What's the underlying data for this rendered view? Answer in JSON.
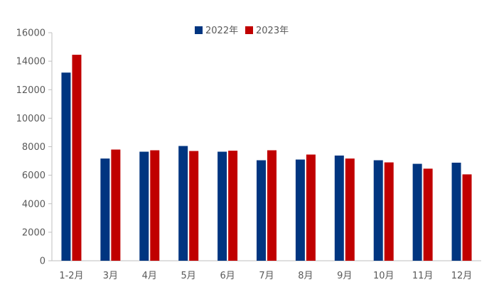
{
  "chart_data": {
    "type": "bar",
    "categories": [
      "1-2月",
      "3月",
      "4月",
      "5月",
      "6月",
      "7月",
      "8月",
      "9月",
      "10月",
      "11月",
      "12月"
    ],
    "series": [
      {
        "name": "2022年",
        "color": "#003580",
        "values": [
          13200,
          7170,
          7650,
          8050,
          7650,
          7050,
          7100,
          7380,
          7050,
          6800,
          6880
        ]
      },
      {
        "name": "2023年",
        "color": "#C00000",
        "values": [
          14450,
          7800,
          7750,
          7700,
          7720,
          7750,
          7450,
          7170,
          6900,
          6460,
          6060
        ]
      }
    ],
    "ylim": [
      0,
      16000
    ],
    "yticks": [
      0,
      2000,
      4000,
      6000,
      8000,
      10000,
      12000,
      14000,
      16000
    ],
    "grid": false,
    "legend": "top-center"
  }
}
